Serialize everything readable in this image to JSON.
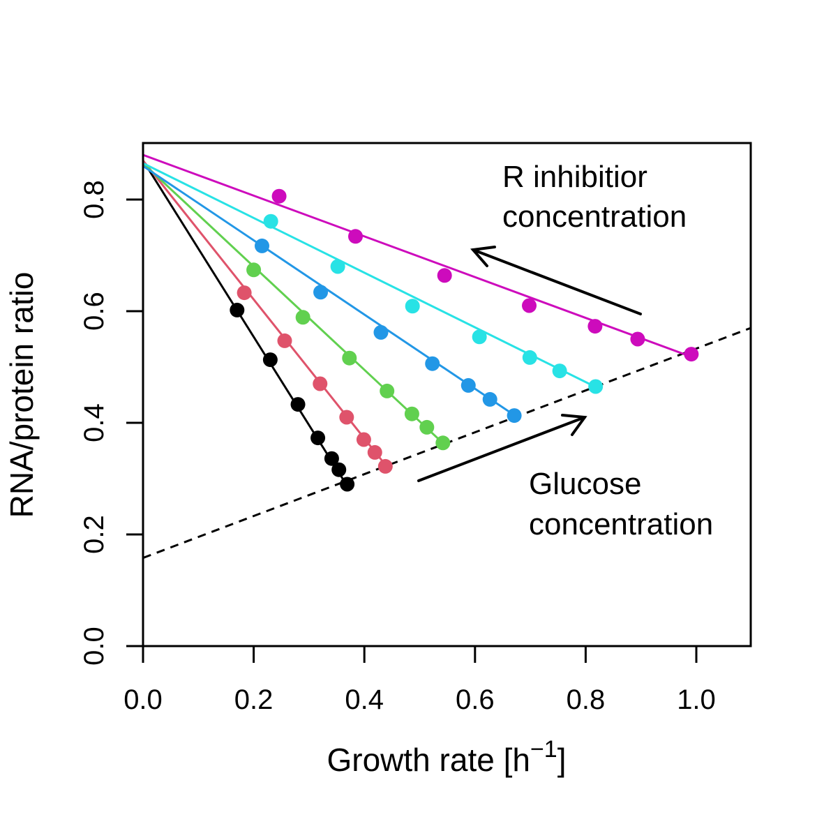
{
  "colors": {
    "black": "#000000",
    "red": "#df536b",
    "green": "#61d04f",
    "blue": "#2297e6",
    "cyan": "#28e2e5",
    "magenta": "#cd0bbc"
  },
  "chart_data": {
    "type": "scatter",
    "title": "",
    "xlabel": "Growth rate [h",
    "xlabel_sup": "−1",
    "xlabel_close": "]",
    "ylabel": "RNA/protein ratio",
    "xlim": [
      0.0,
      1.1
    ],
    "ylim": [
      0.0,
      0.9
    ],
    "xticks": [
      0.0,
      0.2,
      0.4,
      0.6,
      0.8,
      1.0
    ],
    "xtick_labels": [
      "0.0",
      "0.2",
      "0.4",
      "0.6",
      "0.8",
      "1.0"
    ],
    "yticks": [
      0.0,
      0.2,
      0.4,
      0.6,
      0.8
    ],
    "ytick_labels": [
      "0.0",
      "0.2",
      "0.4",
      "0.6",
      "0.8"
    ],
    "grid": false,
    "series": [
      {
        "color": "#000000",
        "fit": {
          "intercept": 0.87,
          "slope": -1.58
        },
        "points": [
          [
            0.17,
            0.602
          ],
          [
            0.23,
            0.513
          ],
          [
            0.28,
            0.433
          ],
          [
            0.316,
            0.373
          ],
          [
            0.341,
            0.336
          ],
          [
            0.354,
            0.316
          ],
          [
            0.369,
            0.29
          ]
        ]
      },
      {
        "color": "#df536b",
        "fit": {
          "intercept": 0.87,
          "slope": -1.245
        },
        "points": [
          [
            0.183,
            0.633
          ],
          [
            0.256,
            0.547
          ],
          [
            0.32,
            0.47
          ],
          [
            0.368,
            0.41
          ],
          [
            0.399,
            0.37
          ],
          [
            0.419,
            0.347
          ],
          [
            0.438,
            0.322
          ]
        ]
      },
      {
        "color": "#61d04f",
        "fit": {
          "intercept": 0.865,
          "slope": -0.925
        },
        "points": [
          [
            0.2,
            0.674
          ],
          [
            0.289,
            0.589
          ],
          [
            0.373,
            0.516
          ],
          [
            0.441,
            0.457
          ],
          [
            0.486,
            0.416
          ],
          [
            0.513,
            0.392
          ],
          [
            0.542,
            0.364
          ]
        ]
      },
      {
        "color": "#2297e6",
        "fit": {
          "intercept": 0.86,
          "slope": -0.665
        },
        "points": [
          [
            0.215,
            0.717
          ],
          [
            0.321,
            0.634
          ],
          [
            0.43,
            0.562
          ],
          [
            0.523,
            0.506
          ],
          [
            0.588,
            0.467
          ],
          [
            0.627,
            0.442
          ],
          [
            0.671,
            0.413
          ]
        ]
      },
      {
        "color": "#28e2e5",
        "fit": {
          "intercept": 0.865,
          "slope": -0.49
        },
        "points": [
          [
            0.231,
            0.761
          ],
          [
            0.352,
            0.68
          ],
          [
            0.487,
            0.609
          ],
          [
            0.608,
            0.554
          ],
          [
            0.699,
            0.517
          ],
          [
            0.753,
            0.493
          ],
          [
            0.818,
            0.465
          ]
        ]
      },
      {
        "color": "#cd0bbc",
        "fit": {
          "intercept": 0.88,
          "slope": -0.365
        },
        "points": [
          [
            0.246,
            0.806
          ],
          [
            0.384,
            0.734
          ],
          [
            0.545,
            0.664
          ],
          [
            0.698,
            0.61
          ],
          [
            0.817,
            0.573
          ],
          [
            0.894,
            0.55
          ],
          [
            0.991,
            0.523
          ]
        ]
      }
    ],
    "reference_line": {
      "intercept": 0.158,
      "slope": 0.375,
      "style": "dashed",
      "color": "#000000"
    },
    "annotations": [
      {
        "id": "inhibitor",
        "lines": [
          "R inhibitior",
          "concentration"
        ]
      },
      {
        "id": "glucose",
        "lines": [
          "Glucose",
          "concentration"
        ]
      }
    ]
  }
}
